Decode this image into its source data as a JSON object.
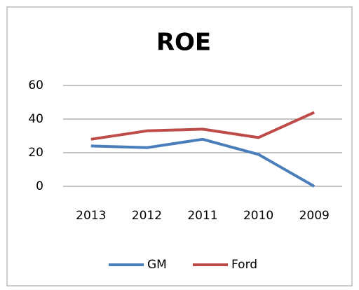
{
  "chart_data": {
    "type": "line",
    "title": "ROE",
    "categories": [
      "2013",
      "2012",
      "2011",
      "2010",
      "2009"
    ],
    "series": [
      {
        "name": "GM",
        "color": "#4a7ebb",
        "values": [
          24,
          23,
          28,
          19,
          0
        ]
      },
      {
        "name": "Ford",
        "color": "#be4b48",
        "values": [
          28,
          33,
          34,
          29,
          44
        ]
      }
    ],
    "ylim": [
      0,
      60
    ],
    "yticks": [
      0,
      20,
      40,
      60
    ],
    "grid": true,
    "legend": "bottom"
  }
}
